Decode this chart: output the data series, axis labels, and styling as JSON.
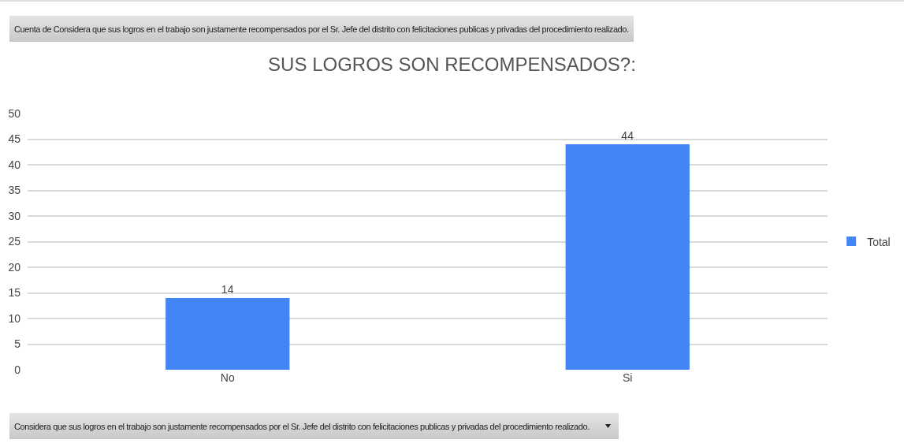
{
  "chart_data": {
    "type": "bar",
    "title": "SUS LOGROS SON RECOMPENSADOS?:",
    "annotations": [
      "Cuenta de Considera que sus logros en el trabajo son justamente recompensados por el Sr. Jefe del distrito con felicitaciones publicas y privadas del procedimiento realizado.",
      "Considera que sus logros en el trabajo son justamente recompensados por el Sr. Jefe del distrito con felicitaciones publicas y privadas del procedimiento realizado."
    ],
    "categories": [
      "No",
      "Si"
    ],
    "series": [
      {
        "name": "Total",
        "color": "#4285f4",
        "values": [
          14,
          44
        ]
      }
    ],
    "data_labels": true,
    "ylim": [
      0,
      50
    ],
    "yticks": [
      0,
      5,
      10,
      15,
      20,
      25,
      30,
      35,
      40,
      45,
      50
    ],
    "grid": "y",
    "legend": "right"
  }
}
